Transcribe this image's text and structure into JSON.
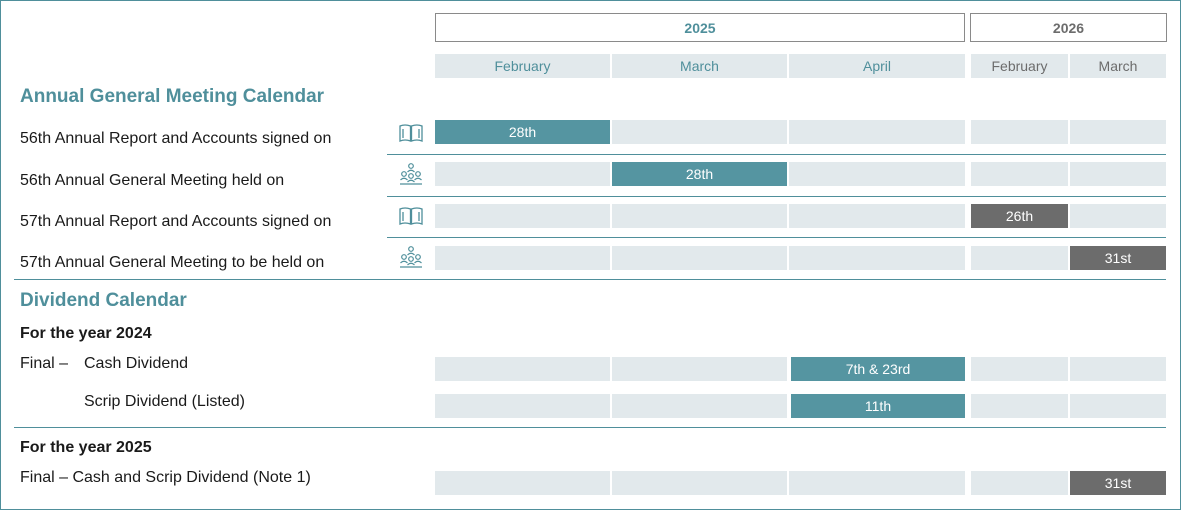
{
  "years": {
    "y2025": "2025",
    "y2026": "2026"
  },
  "months": [
    "February",
    "March",
    "April",
    "February",
    "March"
  ],
  "agm": {
    "title": "Annual General Meeting Calendar",
    "rows": [
      {
        "label": "56th Annual Report and Accounts signed on",
        "icon": "book-icon",
        "value": "28th",
        "month": "February 2025"
      },
      {
        "label": "56th Annual General Meeting held on",
        "icon": "meeting-icon",
        "value": "28th",
        "month": "March 2025"
      },
      {
        "label": "57th Annual Report and Accounts signed on",
        "icon": "book-icon",
        "value": "26th",
        "month": "February 2026"
      },
      {
        "label": "57th Annual General Meeting to be held on",
        "icon": "meeting-icon",
        "value": "31st",
        "month": "March 2026"
      }
    ]
  },
  "dividend": {
    "title": "Dividend Calendar",
    "year2024_heading": "For the year 2024",
    "final_prefix": "Final –",
    "cash_label": "Cash Dividend",
    "cash_value": "7th & 23rd",
    "scrip_label": "Scrip Dividend (Listed)",
    "scrip_value": "11th",
    "year2025_heading": "For the year 2025",
    "final2025_label": "Final – Cash and Scrip Dividend (Note 1)",
    "final2025_value": "31st"
  },
  "colors": {
    "teal": "#5595a1",
    "grey": "#6c6c6c",
    "light": "#e2e9ec"
  }
}
